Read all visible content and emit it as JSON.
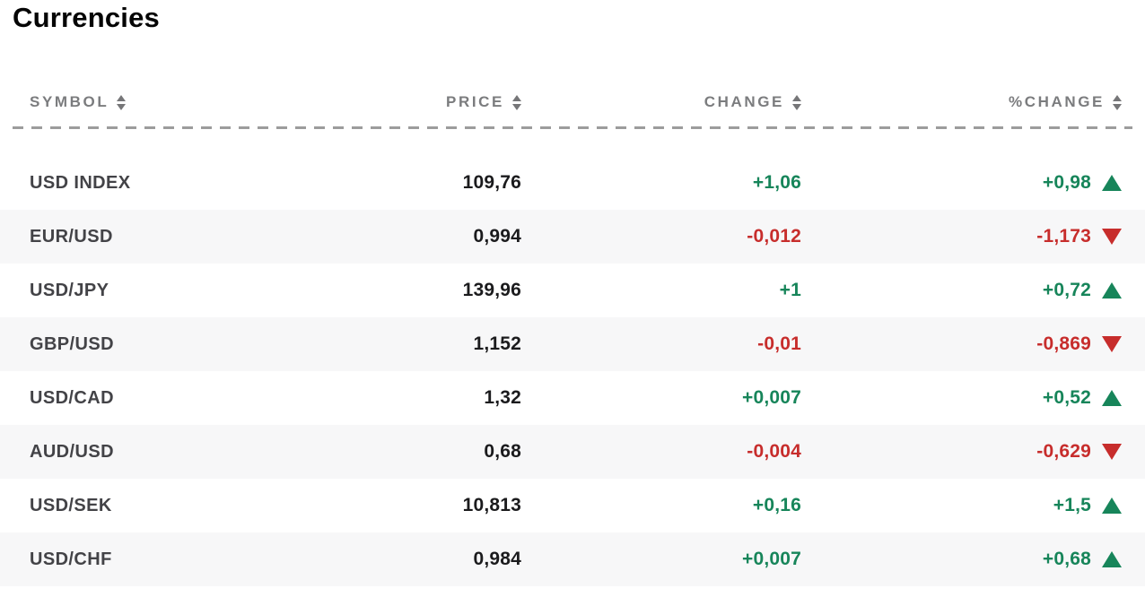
{
  "page": {
    "title": "Currencies"
  },
  "colors": {
    "positive": "#17855a",
    "negative": "#c72d2c",
    "row_alt_bg": "#f7f7f8",
    "header_text": "#7b7c7e"
  },
  "table": {
    "columns": [
      {
        "key": "symbol",
        "label": "SYMBOL",
        "sortable": true
      },
      {
        "key": "price",
        "label": "PRICE",
        "sortable": true
      },
      {
        "key": "change",
        "label": "CHANGE",
        "sortable": true
      },
      {
        "key": "pct_change",
        "label": "%CHANGE",
        "sortable": true
      }
    ],
    "rows": [
      {
        "symbol": "USD INDEX",
        "price": "109,76",
        "change": "+1,06",
        "pct_change": "+0,98",
        "direction": "up"
      },
      {
        "symbol": "EUR/USD",
        "price": "0,994",
        "change": "-0,012",
        "pct_change": "-1,173",
        "direction": "down"
      },
      {
        "symbol": "USD/JPY",
        "price": "139,96",
        "change": "+1",
        "pct_change": "+0,72",
        "direction": "up"
      },
      {
        "symbol": "GBP/USD",
        "price": "1,152",
        "change": "-0,01",
        "pct_change": "-0,869",
        "direction": "down"
      },
      {
        "symbol": "USD/CAD",
        "price": "1,32",
        "change": "+0,007",
        "pct_change": "+0,52",
        "direction": "up"
      },
      {
        "symbol": "AUD/USD",
        "price": "0,68",
        "change": "-0,004",
        "pct_change": "-0,629",
        "direction": "down"
      },
      {
        "symbol": "USD/SEK",
        "price": "10,813",
        "change": "+0,16",
        "pct_change": "+1,5",
        "direction": "up"
      },
      {
        "symbol": "USD/CHF",
        "price": "0,984",
        "change": "+0,007",
        "pct_change": "+0,68",
        "direction": "up"
      }
    ]
  },
  "chart_data": {
    "type": "table",
    "title": "Currencies",
    "columns": [
      "SYMBOL",
      "PRICE",
      "CHANGE",
      "%CHANGE"
    ],
    "rows": [
      [
        "USD INDEX",
        109.76,
        1.06,
        0.98
      ],
      [
        "EUR/USD",
        0.994,
        -0.012,
        -1.173
      ],
      [
        "USD/JPY",
        139.96,
        1.0,
        0.72
      ],
      [
        "GBP/USD",
        1.152,
        -0.01,
        -0.869
      ],
      [
        "USD/CAD",
        1.32,
        0.007,
        0.52
      ],
      [
        "AUD/USD",
        0.68,
        -0.004,
        -0.629
      ],
      [
        "USD/SEK",
        10.813,
        0.16,
        1.5
      ],
      [
        "USD/CHF",
        0.984,
        0.007,
        0.68
      ]
    ]
  }
}
